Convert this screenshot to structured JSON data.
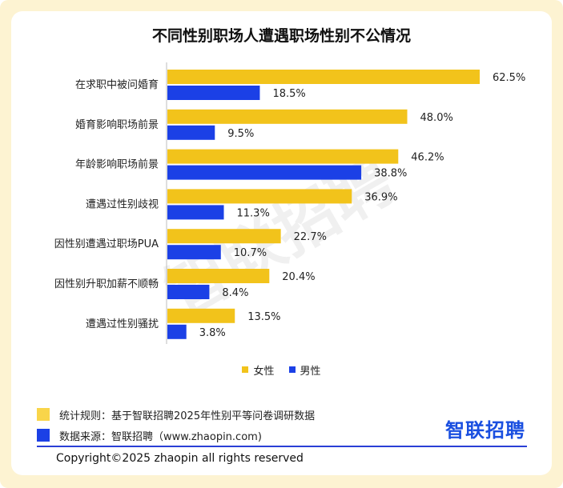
{
  "title": "不同性别职场人遭遇职场性别不公情况",
  "watermark": "智联招聘",
  "colors": {
    "female": "#F2C31B",
    "male": "#1B40E6",
    "brand": "#1A4FE0"
  },
  "chart_data": {
    "type": "bar",
    "orientation": "horizontal",
    "categories": [
      "在求职中被问婚育",
      "婚育影响职场前景",
      "年龄影响职场前景",
      "遭遇过性别歧视",
      "因性别遭遇过职场PUA",
      "因性别升职加薪不顺畅",
      "遭遇过性别骚扰"
    ],
    "series": [
      {
        "name": "女性",
        "values": [
          62.5,
          48.0,
          46.2,
          36.9,
          22.7,
          20.4,
          13.5
        ],
        "labels": [
          "62.5%",
          "48.0%",
          "46.2%",
          "36.9%",
          "22.7%",
          "20.4%",
          "13.5%"
        ]
      },
      {
        "name": "男性",
        "values": [
          18.5,
          9.5,
          38.8,
          11.3,
          10.7,
          8.4,
          3.8
        ],
        "labels": [
          "18.5%",
          "9.5%",
          "38.8%",
          "11.3%",
          "10.7%",
          "8.4%",
          "3.8%"
        ]
      }
    ],
    "xlim": [
      0,
      62.5
    ],
    "legend": "bottom"
  },
  "notes": [
    {
      "text": "统计规则：基于智联招聘2025年性别平等问卷调研数据",
      "color": "#F9D54A"
    },
    {
      "text": "数据来源：智联招聘（www.zhaopin.com)",
      "color": "#1B40E6"
    }
  ],
  "brand_logo": "智联招聘",
  "copyright": "Copyright©2025 zhaopin all rights reserved"
}
